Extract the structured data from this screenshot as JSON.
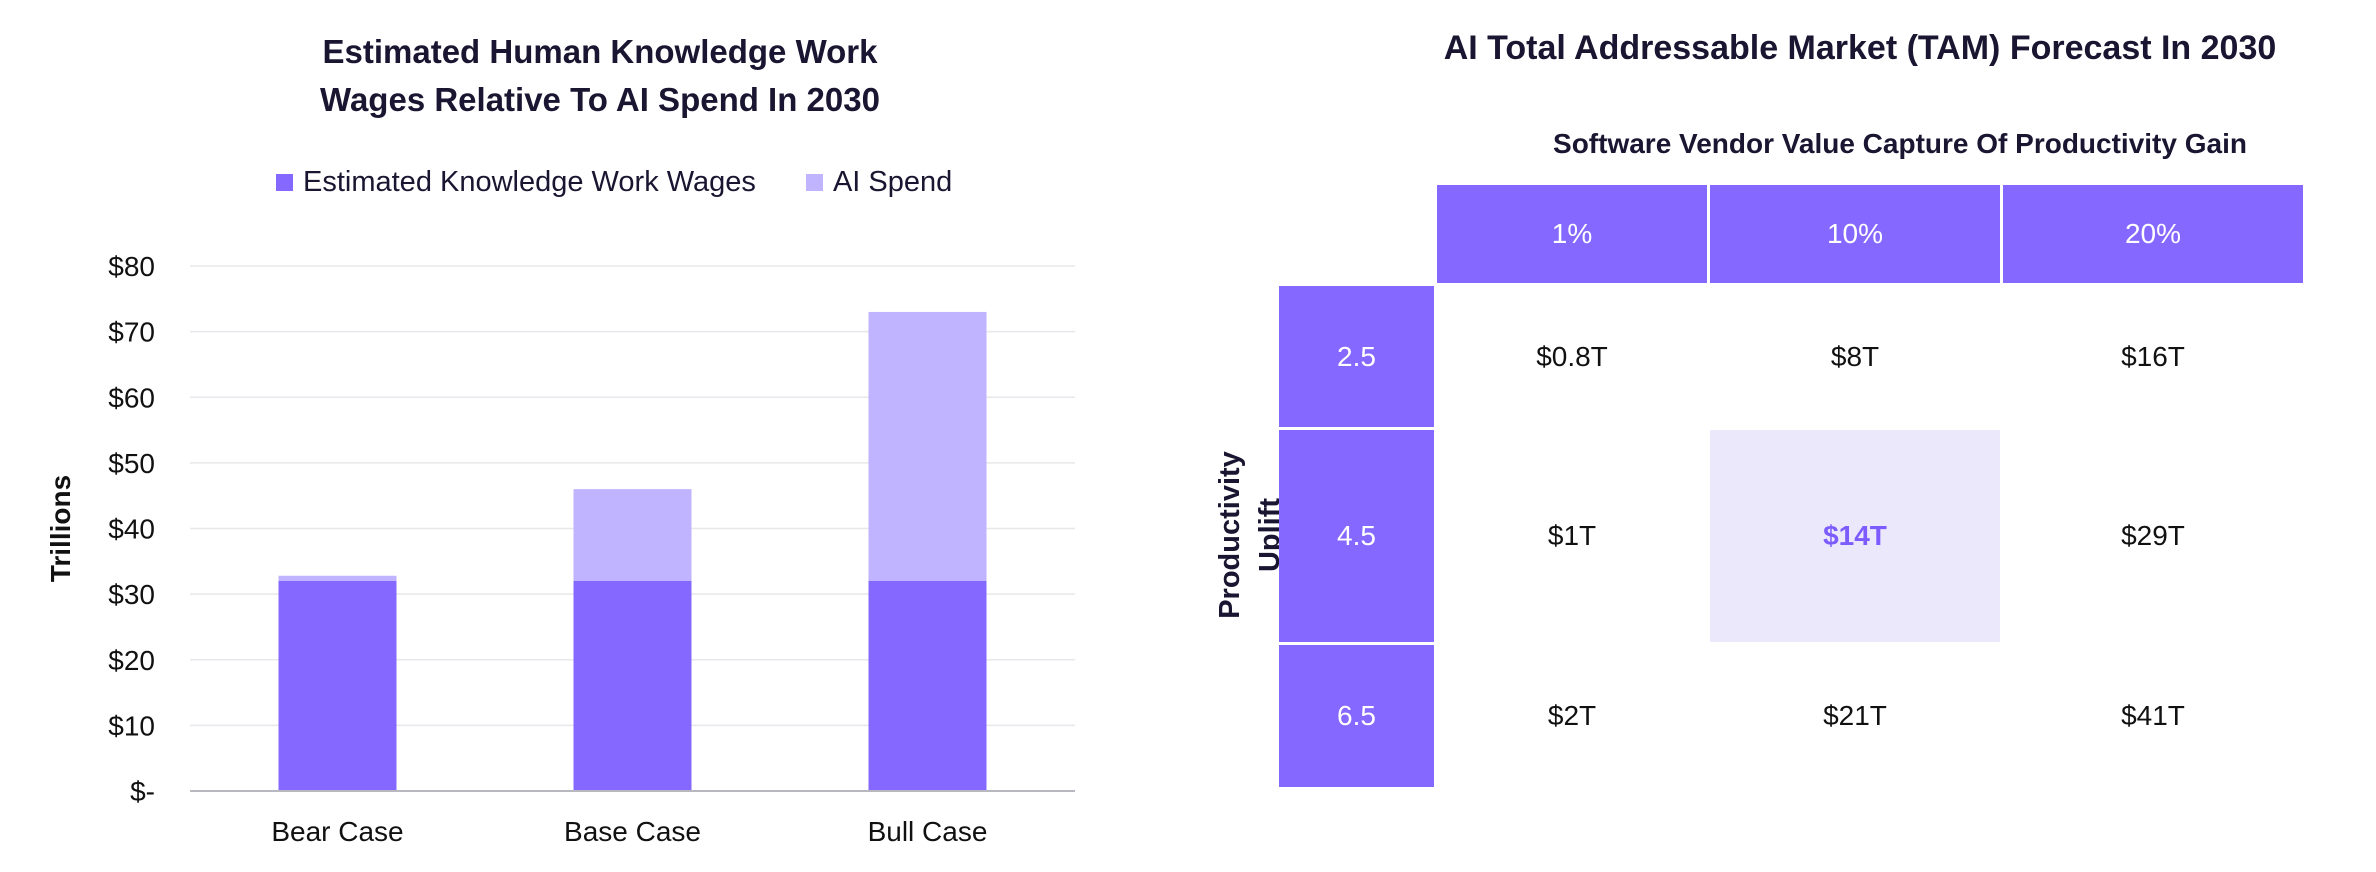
{
  "left_title_line1": "Estimated Human Knowledge Work",
  "left_title_line2": "Wages Relative To AI Spend In 2030",
  "right_title": "AI Total Addressable Market (TAM) Forecast In 2030",
  "colors": {
    "wages": "#8468ff",
    "ai_spend": "#c0b3ff",
    "highlight_bg": "#ece8fc",
    "highlight_text": "#7c5cff"
  },
  "chart_data": [
    {
      "type": "bar",
      "stacked": true,
      "title": "Estimated Human Knowledge Work Wages Relative To AI Spend In 2030",
      "categories": [
        "Bear Case",
        "Base Case",
        "Bull Case"
      ],
      "series": [
        {
          "name": "Estimated Knowledge Work Wages",
          "values": [
            32,
            32,
            32
          ]
        },
        {
          "name": "AI Spend",
          "values": [
            0.8,
            14,
            41
          ]
        }
      ],
      "xlabel": "",
      "ylabel": "Trillions",
      "ylim": [
        0,
        80
      ],
      "yticks": [
        0,
        10,
        20,
        30,
        40,
        50,
        60,
        70,
        80
      ],
      "ytick_labels": [
        "$-",
        "$10",
        "$20",
        "$30",
        "$40",
        "$50",
        "$60",
        "$70",
        "$80"
      ],
      "grid": true,
      "legend": "top"
    },
    {
      "type": "table",
      "title": "AI Total Addressable Market (TAM) Forecast In 2030",
      "column_header": "Software Vendor Value Capture Of Productivity Gain",
      "row_header": "Productivity Uplift",
      "columns": [
        "1%",
        "10%",
        "20%"
      ],
      "rows": [
        {
          "label": "2.5",
          "values": [
            "$0.8T",
            "$8T",
            "$16T"
          ]
        },
        {
          "label": "4.5",
          "values": [
            "$1T",
            "$14T",
            "$29T"
          ]
        },
        {
          "label": "6.5",
          "values": [
            "$2T",
            "$21T",
            "$41T"
          ]
        }
      ],
      "highlight": {
        "row": 1,
        "col": 1
      }
    }
  ]
}
